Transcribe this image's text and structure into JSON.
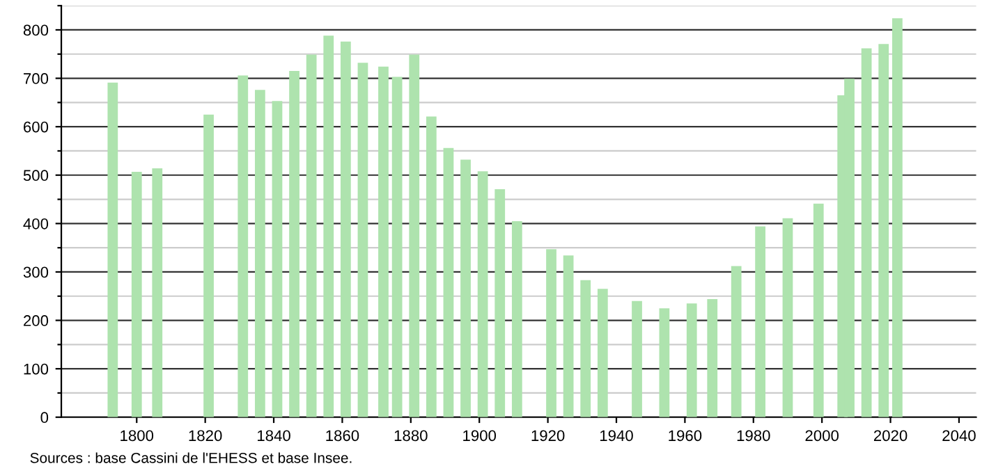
{
  "chart_data": {
    "type": "bar",
    "x": [
      1793,
      1800,
      1806,
      1821,
      1831,
      1836,
      1841,
      1846,
      1851,
      1856,
      1861,
      1866,
      1872,
      1876,
      1881,
      1886,
      1891,
      1896,
      1901,
      1906,
      1911,
      1921,
      1926,
      1931,
      1936,
      1946,
      1954,
      1962,
      1968,
      1975,
      1982,
      1990,
      1999,
      2006,
      2008,
      2013,
      2018,
      2022
    ],
    "values": [
      691,
      507,
      514,
      625,
      706,
      676,
      653,
      715,
      749,
      788,
      776,
      732,
      724,
      703,
      749,
      621,
      556,
      532,
      508,
      471,
      405,
      347,
      334,
      283,
      265,
      240,
      225,
      235,
      244,
      312,
      394,
      411,
      441,
      665,
      699,
      762,
      771,
      824
    ],
    "color": "#aee3ae",
    "xlim": [
      1778,
      2045
    ],
    "xticks": [
      1800,
      1820,
      1840,
      1860,
      1880,
      1900,
      1920,
      1940,
      1960,
      1980,
      2000,
      2020,
      2040
    ],
    "ylim": [
      0,
      850
    ],
    "yticks": [
      0,
      {
        "value": 50,
        "label": null
      },
      100,
      {
        "value": 150,
        "label": null
      },
      200,
      {
        "value": 250,
        "label": null
      },
      300,
      {
        "value": 350,
        "label": null
      },
      400,
      {
        "value": 450,
        "label": null
      },
      500,
      {
        "value": 550,
        "label": null
      },
      600,
      {
        "value": 650,
        "label": null
      },
      700,
      {
        "value": 750,
        "label": null
      },
      800,
      {
        "value": 850,
        "label": null
      }
    ],
    "grid": "y",
    "annotations": [
      "Sources : base Cassini de l'EHESS et base Insee."
    ]
  }
}
